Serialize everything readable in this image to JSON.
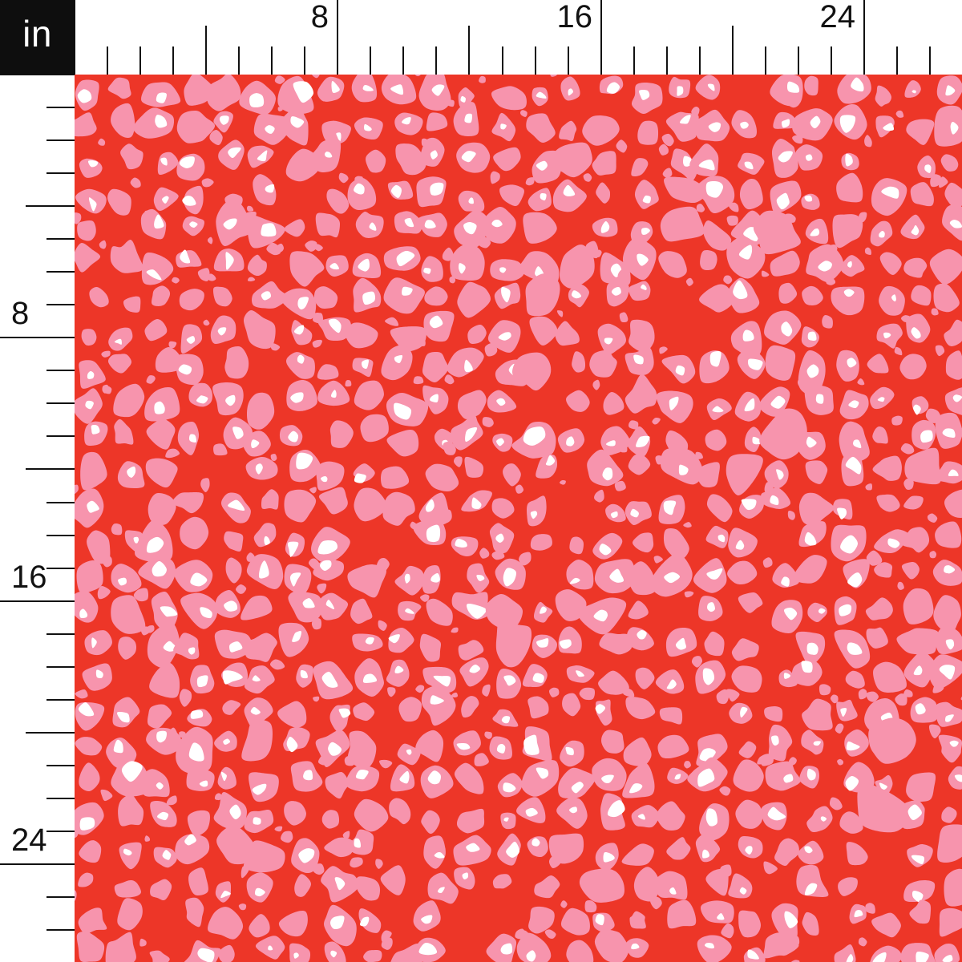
{
  "unit_badge": {
    "label": "in"
  },
  "ruler": {
    "labels": [
      "8",
      "16",
      "24"
    ],
    "background": "#ffffff",
    "tick_color": "#111111",
    "text_color": "#121212",
    "corner_background": "#0e0e0e",
    "corner_text_color": "#ffffff"
  },
  "fabric": {
    "pattern": "leopard-spots",
    "colors": {
      "background": "#ed3628",
      "spot_pink": "#f794ad",
      "spot_highlight": "#ffffff"
    }
  }
}
